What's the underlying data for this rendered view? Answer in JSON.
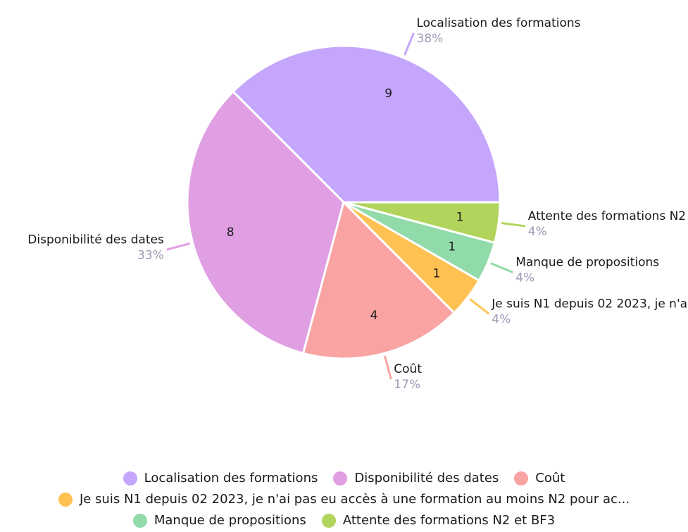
{
  "chart_data": {
    "type": "pie",
    "categories": [
      "Localisation des formations",
      "Disponibilité des dates",
      "Coût",
      "Je suis N1 depuis 02 2023, je n'ai pas eu accès à une formation au moins N2 pour ac...",
      "Manque de propositions",
      "Attente des formations N2 et BF3"
    ],
    "values": [
      9,
      8,
      4,
      1,
      1,
      1
    ],
    "percentage_labels": [
      "38%",
      "33%",
      "17%",
      "4%",
      "4%",
      "4%"
    ],
    "colors": [
      "#c4a6fc",
      "#e09ee3",
      "#f9a3a3",
      "#ffc252",
      "#91dbaa",
      "#b0d45c"
    ],
    "legend": "bottom"
  }
}
